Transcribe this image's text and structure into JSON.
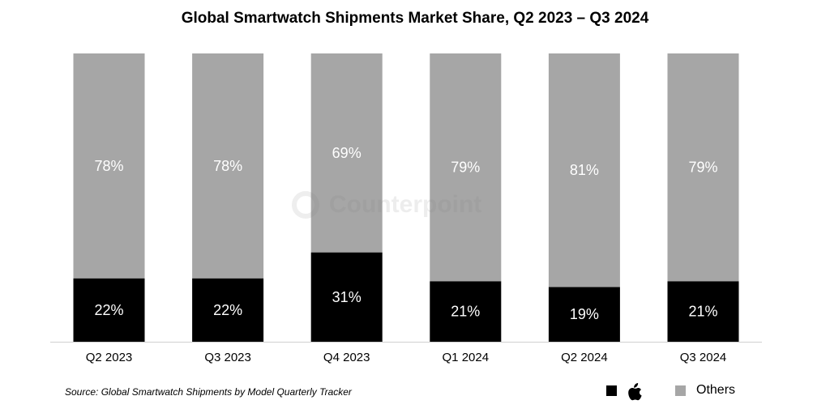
{
  "chart_data": {
    "type": "bar",
    "stacked": true,
    "normalized": true,
    "title": "Global Smartwatch Shipments Market Share, Q2 2023 – Q3 2024",
    "categories": [
      "Q2 2023",
      "Q3 2023",
      "Q4 2023",
      "Q1 2024",
      "Q2 2024",
      "Q3 2024"
    ],
    "series": [
      {
        "name": "Apple",
        "color": "#000000",
        "label_color": "#ffffff",
        "values": [
          22,
          22,
          31,
          21,
          19,
          21
        ],
        "labels": [
          "22%",
          "22%",
          "31%",
          "21%",
          "19%",
          "21%"
        ]
      },
      {
        "name": "Others",
        "color": "#a6a6a6",
        "label_color": "#ffffff",
        "values": [
          78,
          78,
          69,
          79,
          81,
          79
        ],
        "labels": [
          "78%",
          "78%",
          "69%",
          "79%",
          "81%",
          "79%"
        ]
      }
    ],
    "ylim": [
      0,
      100
    ],
    "grid": false,
    "legend_position": "bottom-right"
  },
  "legend": {
    "apple_icon": "apple-logo-icon",
    "others_label": "Others"
  },
  "source": "Source: Global Smartwatch Shipments by Model Quarterly Tracker",
  "watermark": "Counterpoint"
}
